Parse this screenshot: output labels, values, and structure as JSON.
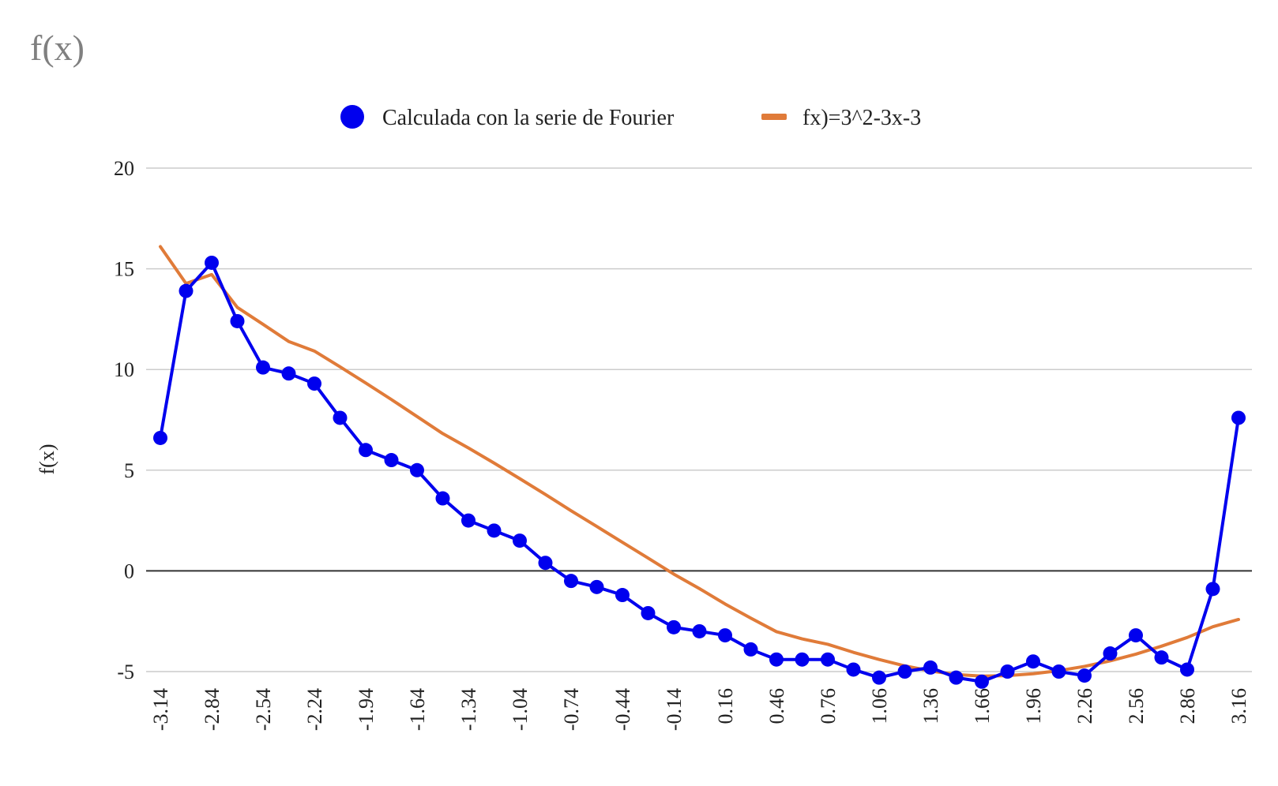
{
  "page": {
    "title": "f(x)"
  },
  "chart_data": {
    "type": "line",
    "title": "f(x)",
    "ylabel": "f(x)",
    "xlabel": "",
    "ylim": [
      -5,
      20
    ],
    "yticks": [
      -5,
      0,
      5,
      10,
      15,
      20
    ],
    "xticks": [
      "-3.14",
      "-2.84",
      "-2.54",
      "-2.24",
      "-1.94",
      "-1.64",
      "-1.34",
      "-1.04",
      "-0.74",
      "-0.44",
      "-0.14",
      "0.16",
      "0.46",
      "0.76",
      "1.06",
      "1.36",
      "1.66",
      "1.96",
      "2.26",
      "2.56",
      "2.86",
      "3.16"
    ],
    "grid": true,
    "legend_position": "top",
    "x": [
      -3.14,
      -2.99,
      -2.84,
      -2.69,
      -2.54,
      -2.39,
      -2.24,
      -2.09,
      -1.94,
      -1.79,
      -1.64,
      -1.49,
      -1.34,
      -1.19,
      -1.04,
      -0.89,
      -0.74,
      -0.59,
      -0.44,
      -0.29,
      -0.14,
      0.01,
      0.16,
      0.31,
      0.46,
      0.61,
      0.76,
      0.91,
      1.06,
      1.21,
      1.36,
      1.51,
      1.66,
      1.81,
      1.96,
      2.11,
      2.26,
      2.41,
      2.56,
      2.71,
      2.86,
      3.01,
      3.16
    ],
    "series": [
      {
        "name": "Calculada con la serie de Fourier",
        "style": "line-markers",
        "color": "#0000ee",
        "values": [
          6.6,
          13.9,
          15.3,
          12.4,
          10.1,
          9.8,
          9.3,
          7.6,
          6.0,
          5.5,
          5.0,
          3.6,
          2.5,
          2.0,
          1.5,
          0.4,
          -0.5,
          -0.8,
          -1.2,
          -2.1,
          -2.8,
          -3.0,
          -3.2,
          -3.9,
          -4.4,
          -4.4,
          -4.4,
          -4.9,
          -5.3,
          -5.0,
          -4.8,
          -5.3,
          -5.5,
          -5.0,
          -4.5,
          -5.0,
          -5.2,
          -4.1,
          -3.2,
          -4.3,
          -4.9,
          -0.9,
          7.6
        ]
      },
      {
        "name": "fx)=3^2-3x-3",
        "style": "line",
        "color": "#e07b39",
        "values": [
          16.0994,
          14.2683,
          14.7151,
          13.0816,
          12.2436,
          11.3911,
          10.9148,
          10.1329,
          9.3296,
          8.5091,
          7.6634,
          6.8171,
          6.1034,
          5.3549,
          4.5814,
          3.7952,
          2.9874,
          2.2079,
          1.4174,
          0.6346,
          -0.1594,
          -0.8807,
          -1.6436,
          -2.3459,
          -3.0194,
          -3.3763,
          -3.6469,
          -4.0457,
          -4.4014,
          -4.7167,
          -4.9694,
          -5.1469,
          -5.2267,
          -5.2002,
          -5.1076,
          -4.9545,
          -4.7428,
          -4.4696,
          -4.1347,
          -3.7392,
          -3.3079,
          -2.7749,
          -2.4132
        ]
      }
    ]
  }
}
